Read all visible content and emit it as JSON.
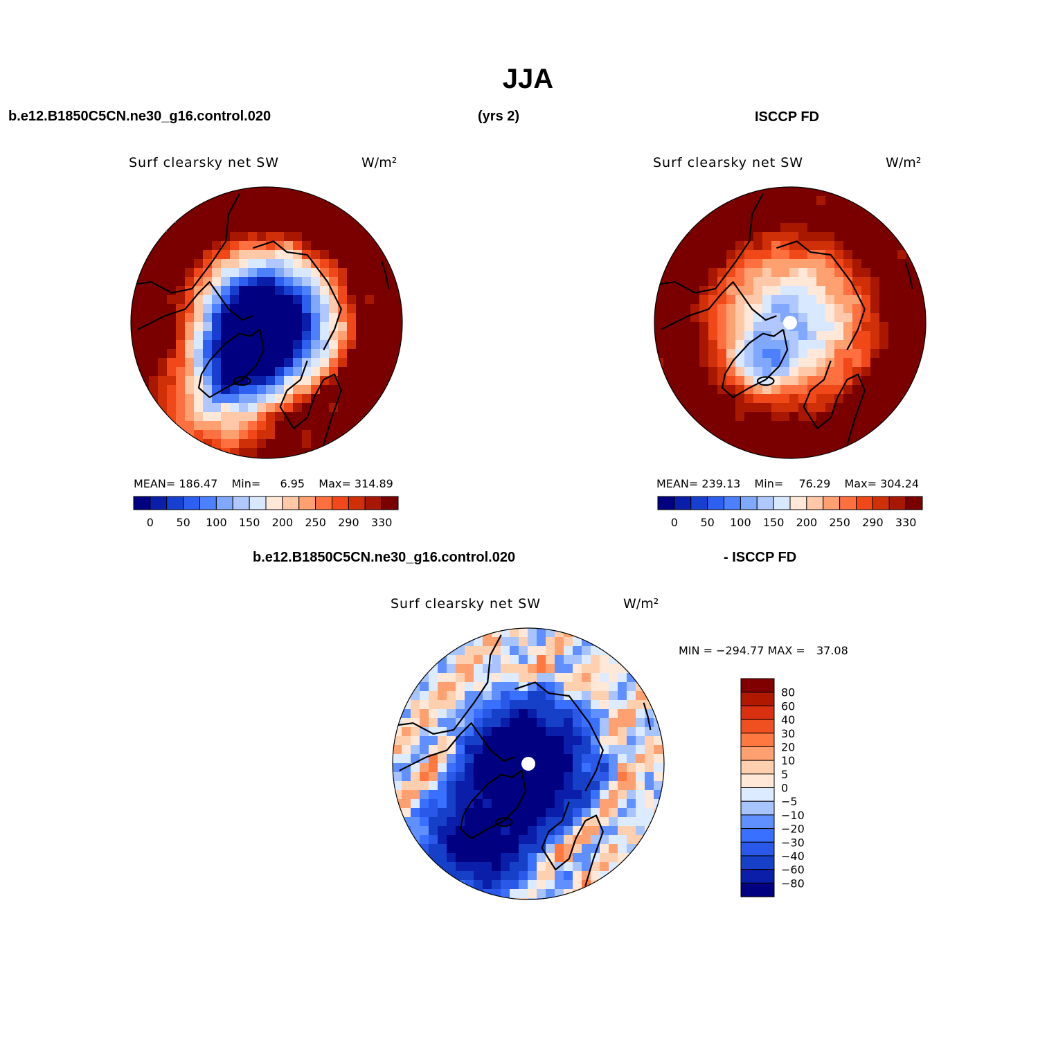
{
  "page": {
    "title": "JJA",
    "case_label": "b.e12.B1850C5CN.ne30_g16.control.020",
    "years_label": "(yrs 2)",
    "obs_label": "ISCCP FD",
    "diff_case_label": "b.e12.B1850C5CN.ne30_g16.control.020",
    "diff_obs_label": "- ISCCP FD"
  },
  "colors": {
    "abs_levels": [
      "#000080",
      "#0a1eaa",
      "#1840d0",
      "#2d60f0",
      "#4d80ff",
      "#80a8ff",
      "#b0c8ff",
      "#d8e8ff",
      "#ffe8d8",
      "#ffc8a8",
      "#ffa070",
      "#ff7040",
      "#f04818",
      "#d03008",
      "#a81800",
      "#7a0000"
    ],
    "diff_levels": [
      "#000080",
      "#0a1eaa",
      "#1640c8",
      "#2a58e8",
      "#3a70ff",
      "#6090ff",
      "#a8c4ff",
      "#dcebff",
      "#ffe8d8",
      "#ffd0b0",
      "#ffa070",
      "#ff7840",
      "#f05020",
      "#d83010",
      "#b01800",
      "#800000"
    ]
  },
  "chart_data": [
    {
      "type": "heatmap",
      "projection": "north polar stereographic",
      "title": "Surf clearsky net SW",
      "units": "W/m²",
      "stats": {
        "mean": "186.47",
        "min": "6.95",
        "max": "314.89"
      },
      "mean_label": "MEAN=",
      "min_label": "Min=",
      "max_label": "Max=",
      "colorbar_ticks": [
        "0",
        "50",
        "100",
        "150",
        "200",
        "250",
        "290",
        "330"
      ],
      "colorbar_levels": 16,
      "value_range": [
        0,
        340
      ]
    },
    {
      "type": "heatmap",
      "projection": "north polar stereographic",
      "title": "Surf clearsky net SW",
      "units": "W/m²",
      "stats": {
        "mean": "239.13",
        "min": "76.29",
        "max": "304.24"
      },
      "mean_label": "MEAN=",
      "min_label": "Min=",
      "max_label": "Max=",
      "colorbar_ticks": [
        "0",
        "50",
        "100",
        "150",
        "200",
        "250",
        "290",
        "330"
      ],
      "colorbar_levels": 16,
      "value_range": [
        0,
        340
      ]
    },
    {
      "type": "heatmap",
      "projection": "north polar stereographic",
      "title": "Surf clearsky net SW",
      "units": "W/m²",
      "stats": {
        "min": "−294.77",
        "max": "37.08"
      },
      "min_label": "MIN =",
      "max_label": "MAX =",
      "colorbar_ticks": [
        "80",
        "60",
        "40",
        "30",
        "20",
        "10",
        "5",
        "0",
        "−5",
        "−10",
        "−20",
        "−30",
        "−40",
        "−60",
        "−80"
      ],
      "colorbar_levels": 16,
      "value_range": [
        -100,
        100
      ]
    }
  ]
}
